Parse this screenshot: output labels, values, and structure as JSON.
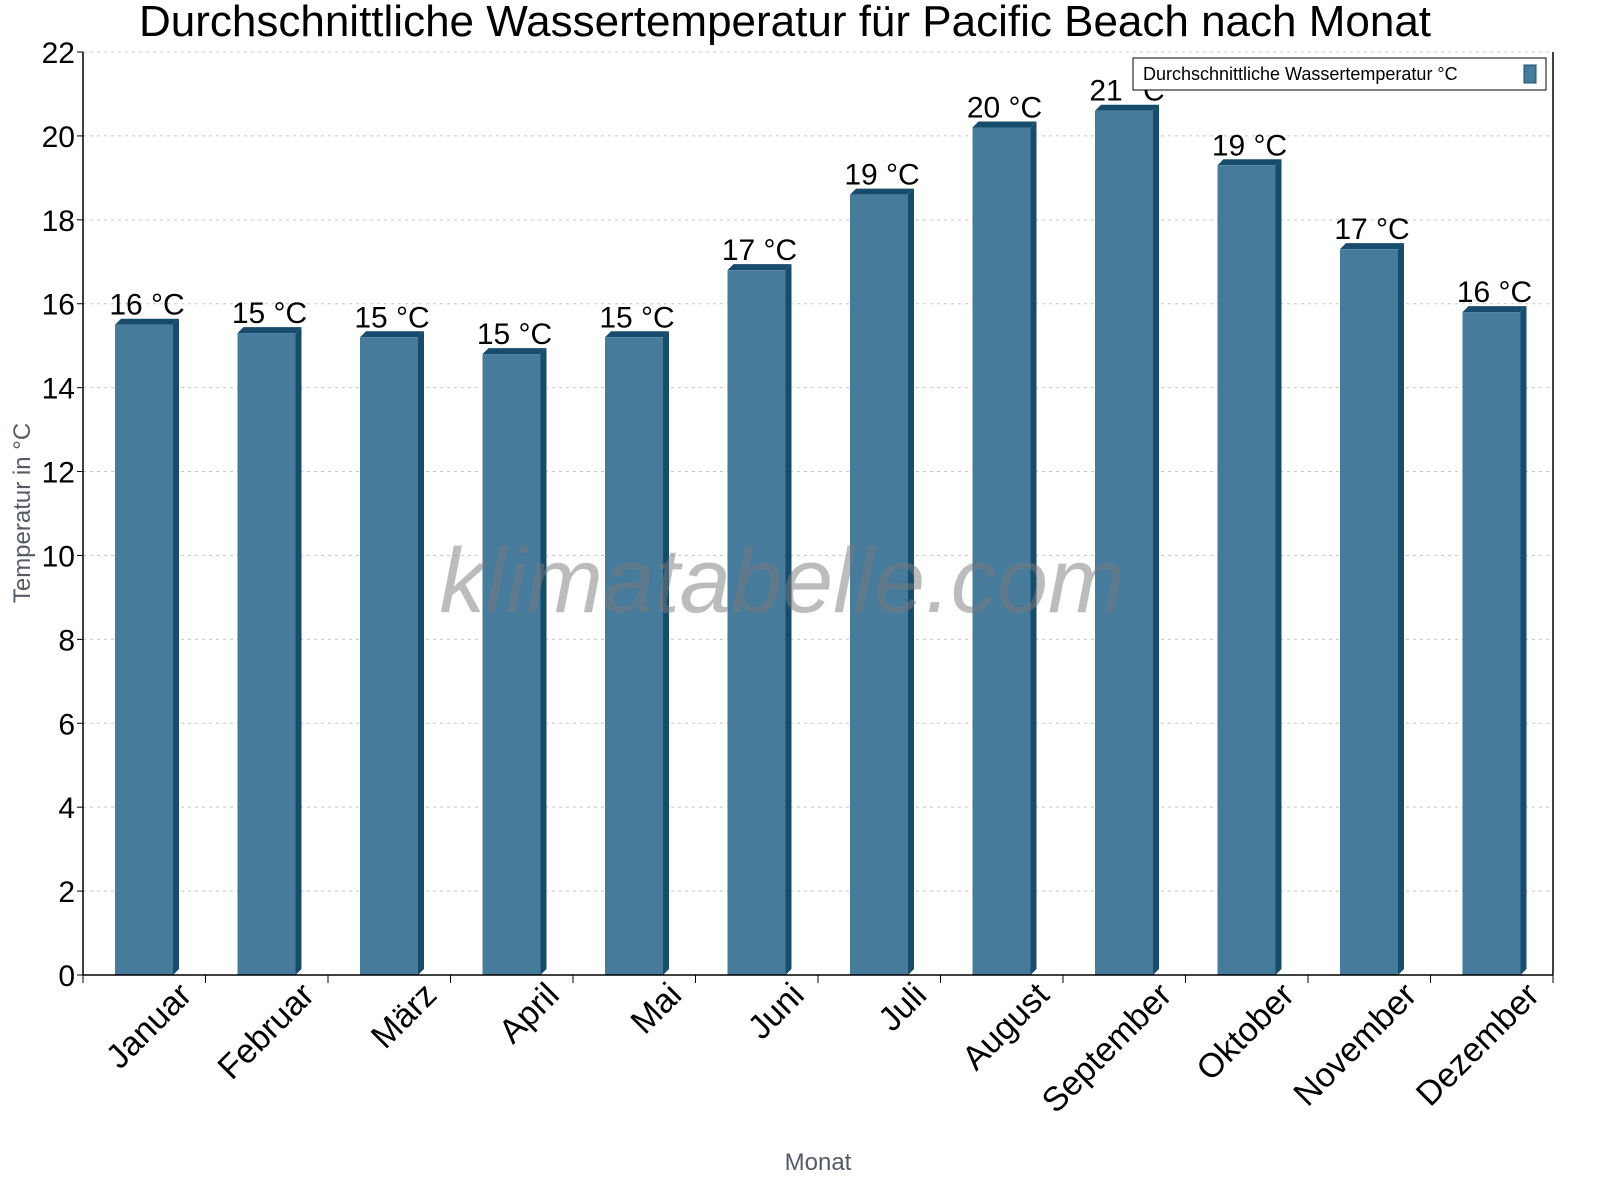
{
  "chart": {
    "title": "Durchschnittliche Wassertemperatur für Pacific Beach nach Monat",
    "ylabel": "Temperatur in °C",
    "xlabel": "Monat",
    "legend_label": "Durchschnittliche Wassertemperatur °C",
    "watermark": "klimatabelle.com",
    "colors": {
      "bar_front": "#467b9c",
      "bar_side": "#174c6c",
      "grid": "#c8c8c8",
      "axis": "#000000"
    }
  },
  "chart_data": {
    "type": "bar",
    "title": "Durchschnittliche Wassertemperatur für Pacific Beach nach Monat",
    "xlabel": "Monat",
    "ylabel": "Temperatur in °C",
    "ylim": [
      0,
      22
    ],
    "yticks": [
      0,
      2,
      4,
      6,
      8,
      10,
      12,
      14,
      16,
      18,
      20,
      22
    ],
    "grid": true,
    "legend_position": "top-right",
    "categories": [
      "Januar",
      "Februar",
      "März",
      "April",
      "Mai",
      "Juni",
      "Juli",
      "August",
      "September",
      "Oktober",
      "November",
      "Dezember"
    ],
    "series": [
      {
        "name": "Durchschnittliche Wassertemperatur °C",
        "values": [
          15.5,
          15.3,
          15.2,
          14.8,
          15.2,
          16.8,
          18.6,
          20.2,
          20.6,
          19.3,
          17.3,
          15.8
        ],
        "data_labels": [
          "16 °C",
          "15 °C",
          "15 °C",
          "15 °C",
          "15 °C",
          "17 °C",
          "19 °C",
          "20 °C",
          "21 °C",
          "19 °C",
          "17 °C",
          "16 °C"
        ]
      }
    ]
  }
}
